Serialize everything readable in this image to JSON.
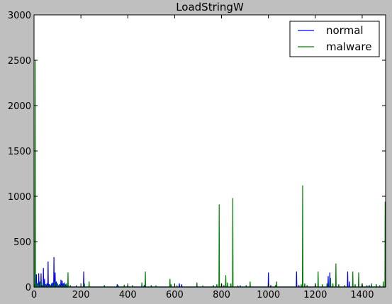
{
  "chart_data": {
    "type": "line",
    "title": "LoadStringW",
    "xlabel": "",
    "ylabel": "",
    "xlim": [
      0,
      1500
    ],
    "ylim": [
      0,
      3000
    ],
    "x_ticks": [
      0,
      200,
      400,
      600,
      800,
      1000,
      1200,
      1400
    ],
    "y_ticks": [
      0,
      500,
      1000,
      1500,
      2000,
      2500,
      3000
    ],
    "grid": false,
    "legend_position": "top-right",
    "series": [
      {
        "name": "normal",
        "color": "#0000ff",
        "spikes": [
          [
            2,
            30
          ],
          [
            6,
            50
          ],
          [
            10,
            140
          ],
          [
            15,
            40
          ],
          [
            20,
            150
          ],
          [
            25,
            60
          ],
          [
            30,
            150
          ],
          [
            35,
            20
          ],
          [
            40,
            210
          ],
          [
            45,
            90
          ],
          [
            50,
            30
          ],
          [
            55,
            40
          ],
          [
            60,
            280
          ],
          [
            65,
            30
          ],
          [
            70,
            20
          ],
          [
            75,
            40
          ],
          [
            80,
            50
          ],
          [
            85,
            330
          ],
          [
            90,
            160
          ],
          [
            95,
            60
          ],
          [
            100,
            40
          ],
          [
            105,
            20
          ],
          [
            110,
            30
          ],
          [
            115,
            80
          ],
          [
            120,
            70
          ],
          [
            125,
            40
          ],
          [
            130,
            50
          ],
          [
            135,
            30
          ],
          [
            140,
            20
          ],
          [
            145,
            20
          ],
          [
            180,
            10
          ],
          [
            212,
            170
          ],
          [
            300,
            15
          ],
          [
            355,
            30
          ],
          [
            400,
            10
          ],
          [
            470,
            20
          ],
          [
            620,
            40
          ],
          [
            630,
            30
          ],
          [
            880,
            10
          ],
          [
            1000,
            160
          ],
          [
            1010,
            20
          ],
          [
            1120,
            170
          ],
          [
            1130,
            20
          ],
          [
            1255,
            120
          ],
          [
            1262,
            160
          ],
          [
            1338,
            170
          ],
          [
            1345,
            60
          ],
          [
            1360,
            40
          ],
          [
            1400,
            30
          ],
          [
            1430,
            20
          ],
          [
            1460,
            30
          ]
        ]
      },
      {
        "name": "malware",
        "color": "#008000",
        "spikes": [
          [
            5,
            2500
          ],
          [
            12,
            40
          ],
          [
            18,
            30
          ],
          [
            28,
            60
          ],
          [
            38,
            50
          ],
          [
            48,
            30
          ],
          [
            58,
            20
          ],
          [
            68,
            30
          ],
          [
            78,
            20
          ],
          [
            88,
            60
          ],
          [
            98,
            40
          ],
          [
            108,
            30
          ],
          [
            118,
            20
          ],
          [
            128,
            30
          ],
          [
            138,
            40
          ],
          [
            145,
            160
          ],
          [
            155,
            20
          ],
          [
            215,
            40
          ],
          [
            235,
            60
          ],
          [
            300,
            20
          ],
          [
            360,
            10
          ],
          [
            385,
            25
          ],
          [
            400,
            20
          ],
          [
            420,
            20
          ],
          [
            460,
            50
          ],
          [
            475,
            170
          ],
          [
            500,
            20
          ],
          [
            520,
            10
          ],
          [
            580,
            90
          ],
          [
            585,
            30
          ],
          [
            610,
            10
          ],
          [
            695,
            50
          ],
          [
            720,
            10
          ],
          [
            765,
            20
          ],
          [
            780,
            30
          ],
          [
            790,
            910
          ],
          [
            800,
            40
          ],
          [
            810,
            20
          ],
          [
            818,
            130
          ],
          [
            825,
            50
          ],
          [
            840,
            40
          ],
          [
            848,
            980
          ],
          [
            870,
            10
          ],
          [
            905,
            20
          ],
          [
            922,
            60
          ],
          [
            1000,
            10
          ],
          [
            1030,
            20
          ],
          [
            1035,
            60
          ],
          [
            1140,
            30
          ],
          [
            1146,
            1120
          ],
          [
            1155,
            40
          ],
          [
            1165,
            20
          ],
          [
            1200,
            40
          ],
          [
            1212,
            170
          ],
          [
            1230,
            30
          ],
          [
            1250,
            40
          ],
          [
            1265,
            100
          ],
          [
            1275,
            40
          ],
          [
            1288,
            260
          ],
          [
            1300,
            30
          ],
          [
            1325,
            20
          ],
          [
            1360,
            170
          ],
          [
            1370,
            30
          ],
          [
            1385,
            160
          ],
          [
            1400,
            40
          ],
          [
            1420,
            20
          ],
          [
            1440,
            40
          ],
          [
            1460,
            30
          ],
          [
            1475,
            20
          ],
          [
            1490,
            60
          ],
          [
            1498,
            940
          ]
        ]
      }
    ]
  }
}
